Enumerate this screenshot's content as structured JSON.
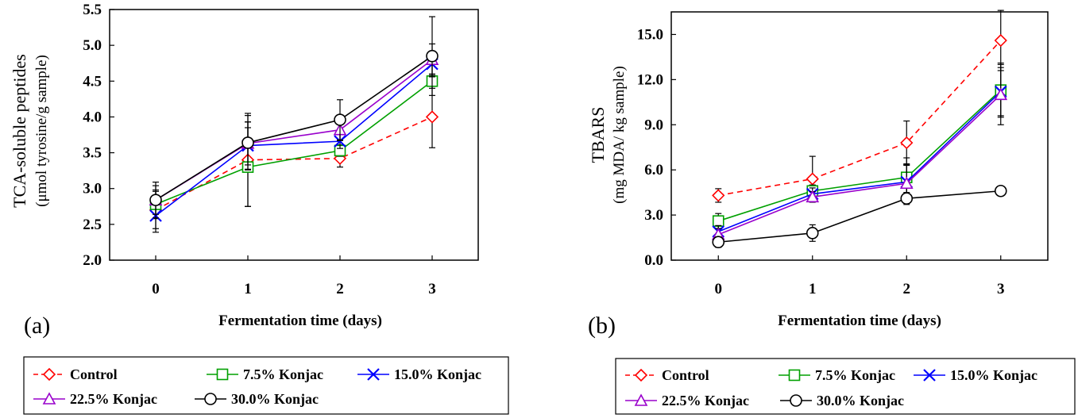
{
  "chart_data": [
    {
      "type": "line",
      "panel_label": "(a)",
      "title": "",
      "xlabel": "Fermentation time (days)",
      "ylabel_line1": "TCA-soluble peptides",
      "ylabel_line2": "(μmol tyrosine/g sample)",
      "x": [
        0,
        1,
        2,
        3
      ],
      "xlim": [
        -0.5,
        3.5
      ],
      "ylim": [
        2.0,
        5.5
      ],
      "yticks": [
        "2.0",
        "2.5",
        "3.0",
        "3.5",
        "4.0",
        "4.5",
        "5.0",
        "5.5"
      ],
      "grid": false,
      "legend_position": "bottom",
      "series": [
        {
          "name": "Control",
          "values": [
            2.7,
            3.4,
            3.42,
            4.0
          ],
          "errors": [
            0.26,
            0.65,
            0.12,
            0.43
          ],
          "color": "#ff0000",
          "dash": "dashed",
          "marker": "diamond"
        },
        {
          "name": "7.5% Konjac",
          "values": [
            2.78,
            3.3,
            3.53,
            4.5
          ],
          "errors": [
            0.2,
            0.55,
            0.08,
            0.1
          ],
          "color": "#00a000",
          "dash": "solid",
          "marker": "square"
        },
        {
          "name": "15.0% Konjac",
          "values": [
            2.62,
            3.6,
            3.66,
            4.74
          ],
          "errors": [
            0.23,
            0.33,
            0.1,
            0.18
          ],
          "color": "#0000ff",
          "dash": "solid",
          "marker": "x"
        },
        {
          "name": "22.5% Konjac",
          "values": [
            2.84,
            3.63,
            3.82,
            4.8
          ],
          "errors": [
            0.2,
            0.3,
            0.15,
            0.22
          ],
          "color": "#9900cc",
          "dash": "solid",
          "marker": "triangle"
        },
        {
          "name": "30.0% Konjac",
          "values": [
            2.84,
            3.64,
            3.96,
            4.85
          ],
          "errors": [
            0.25,
            0.38,
            0.28,
            0.55
          ],
          "color": "#000000",
          "dash": "solid",
          "marker": "circle"
        }
      ]
    },
    {
      "type": "line",
      "panel_label": "(b)",
      "title": "",
      "xlabel": "Fermentation time (days)",
      "ylabel_line1": "TBARS",
      "ylabel_line2": "(mg MDA/ kg sample)",
      "x": [
        0,
        1,
        2,
        3
      ],
      "xlim": [
        -0.5,
        3.5
      ],
      "ylim": [
        0.0,
        16.5
      ],
      "yticks": [
        "0.0",
        "3.0",
        "6.0",
        "9.0",
        "12.0",
        "15.0"
      ],
      "grid": false,
      "legend_position": "bottom",
      "series": [
        {
          "name": "Control",
          "values": [
            4.3,
            5.4,
            7.8,
            14.6
          ],
          "errors": [
            0.45,
            1.5,
            1.45,
            2.0
          ],
          "color": "#ff0000",
          "dash": "dashed",
          "marker": "diamond"
        },
        {
          "name": "7.5% Konjac",
          "values": [
            2.6,
            4.6,
            5.5,
            11.3
          ],
          "errors": [
            0.5,
            0.4,
            1.3,
            1.8
          ],
          "color": "#00a000",
          "dash": "solid",
          "marker": "square"
        },
        {
          "name": "15.0% Konjac",
          "values": [
            1.9,
            4.4,
            5.2,
            11.2
          ],
          "errors": [
            0.4,
            0.4,
            1.2,
            1.6
          ],
          "color": "#0000ff",
          "dash": "solid",
          "marker": "x"
        },
        {
          "name": "22.5% Konjac",
          "values": [
            1.7,
            4.2,
            5.1,
            11.0
          ],
          "errors": [
            0.4,
            0.35,
            1.2,
            2.0
          ],
          "color": "#9900cc",
          "dash": "solid",
          "marker": "triangle"
        },
        {
          "name": "30.0% Konjac",
          "values": [
            1.2,
            1.8,
            4.1,
            4.6
          ],
          "errors": [
            0.35,
            0.55,
            0.4,
            0.2
          ],
          "color": "#000000",
          "dash": "solid",
          "marker": "circle"
        }
      ]
    }
  ]
}
